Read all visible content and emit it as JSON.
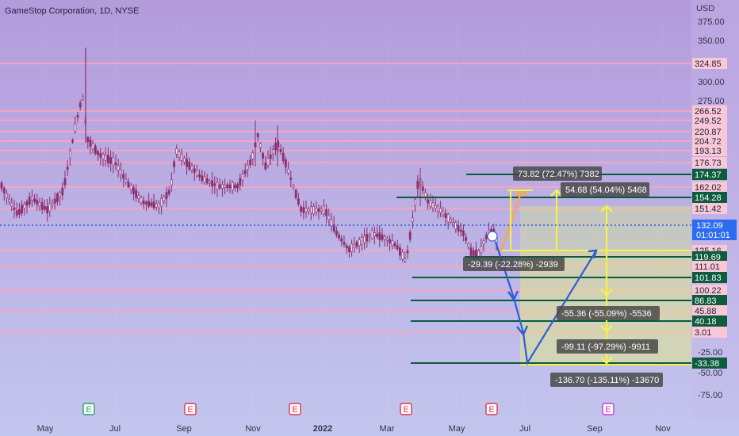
{
  "chart_data": {
    "type": "candlestick",
    "title": "GameStop Corporation, 1D, NYSE",
    "currency": "USD",
    "scale": "log",
    "y_range": [
      -75,
      400
    ],
    "y_ticks": [
      "375.00",
      "350.00",
      "300.00",
      "275.00",
      "-25.00",
      "-50.00",
      "-75.00"
    ],
    "x_ticks": [
      "May",
      "Jul",
      "Sep",
      "Nov",
      "2022",
      "Mar",
      "May",
      "Jul",
      "Sep",
      "Nov"
    ],
    "last_price": "132.09",
    "countdown": "01:01:01",
    "price_levels": [
      "324.85",
      "266.52",
      "249.52",
      "220.87",
      "204.72",
      "193.13",
      "176.73",
      "174.37",
      "162.02",
      "154.28",
      "151.42",
      "125.16",
      "119.69",
      "111.01",
      "101.83",
      "100.22",
      "86.83",
      "45.88",
      "40.18",
      "3.01",
      "-33.38"
    ],
    "earnings_markers": [
      "E",
      "E",
      "E",
      "E",
      "E",
      "E"
    ],
    "dividend_marker": "E",
    "measurements": [
      "73.82 (72.47%) 7382",
      "54.68 (54.04%) 5468",
      "-29.39 (-22.28%) -2939",
      "-55.36 (-55.09%) -5536",
      "-99.11 (-97.29%) -9911",
      "-136.70 (-135.11%) -13670"
    ],
    "colors": {
      "bg_top": "#b49bdc",
      "bg_bottom": "#c3c6ee",
      "candle": "#8a2d6b",
      "resistance": "#f6a6c0",
      "support": "#0c5a3c",
      "projection_yellow": "#f5f24a",
      "projection_orange": "#ffaa2a",
      "projection_blue": "#2d5fd6",
      "last_price_label": "#2d6cf0",
      "dark_level_label": "#0e5b3d",
      "earnings": "#d9354e",
      "dividend": "#c23ad6"
    }
  }
}
